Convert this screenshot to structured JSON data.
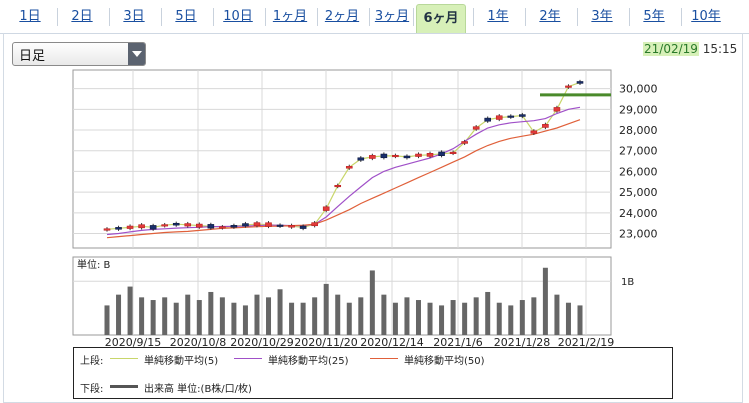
{
  "tabs": [
    "1日",
    "2日",
    "3日",
    "5日",
    "10日",
    "1ヶ月",
    "2ヶ月",
    "3ヶ月",
    "6ヶ月",
    "1年",
    "2年",
    "3年",
    "5年",
    "10年"
  ],
  "active_tab": "6ヶ月",
  "select": {
    "value": "日足"
  },
  "timestamp": {
    "date": "21/02/19",
    "time": "15:15"
  },
  "chart_data": [
    {
      "type": "candlestick",
      "panel": "price",
      "yticks": [
        "30,000",
        "29,000",
        "28,000",
        "27,000",
        "26,000",
        "25,000",
        "24,000",
        "23,000"
      ],
      "ylim": [
        22300,
        30900
      ],
      "grid": true,
      "series": [
        {
          "name": "単純移動平均(5)",
          "color": "#c8d66a",
          "values": [
            23200,
            23250,
            23300,
            23350,
            23300,
            23400,
            23450,
            23420,
            23380,
            23350,
            23300,
            23350,
            23420,
            23450,
            23430,
            23380,
            23350,
            23300,
            23450,
            24200,
            25300,
            26200,
            26600,
            26700,
            26750,
            26750,
            26700,
            26780,
            26800,
            26850,
            26900,
            27400,
            28100,
            28500,
            28600,
            28650,
            28700,
            27900,
            28200,
            29000,
            30100,
            30300
          ]
        },
        {
          "name": "単純移動平均(25)",
          "color": "#a050c8",
          "values": [
            22950,
            23000,
            23080,
            23150,
            23200,
            23230,
            23260,
            23280,
            23300,
            23330,
            23340,
            23350,
            23360,
            23380,
            23400,
            23400,
            23380,
            23380,
            23450,
            23800,
            24300,
            24800,
            25250,
            25700,
            26000,
            26200,
            26350,
            26500,
            26650,
            26850,
            27100,
            27450,
            27800,
            28100,
            28250,
            28350,
            28400,
            28450,
            28550,
            28800,
            29000,
            29100
          ]
        },
        {
          "name": "単純移動平均(50)",
          "color": "#e0603a",
          "values": [
            22800,
            22850,
            22900,
            22950,
            23000,
            23050,
            23080,
            23100,
            23150,
            23200,
            23250,
            23270,
            23300,
            23330,
            23350,
            23360,
            23380,
            23400,
            23450,
            23650,
            23900,
            24150,
            24450,
            24700,
            24950,
            25200,
            25450,
            25700,
            25950,
            26200,
            26450,
            26700,
            27000,
            27250,
            27450,
            27600,
            27700,
            27800,
            27950,
            28100,
            28300,
            28500
          ]
        }
      ],
      "marker_line": {
        "value": 29700,
        "color": "#4a8a2a"
      }
    },
    {
      "type": "bar",
      "panel": "volume",
      "ylabel": "単位: B",
      "ytick": "1B",
      "xticks": [
        "2020/9/15",
        "2020/10/8",
        "2020/10/29",
        "2020/11/20",
        "2020/12/14",
        "2021/1/6",
        "2021/1/28",
        "2021/2/19"
      ],
      "color": "#666666",
      "values": [
        0.55,
        0.75,
        0.9,
        0.7,
        0.65,
        0.7,
        0.6,
        0.75,
        0.65,
        0.8,
        0.7,
        0.6,
        0.55,
        0.75,
        0.7,
        0.85,
        0.6,
        0.6,
        0.7,
        0.95,
        0.75,
        0.6,
        0.7,
        1.2,
        0.75,
        0.6,
        0.7,
        0.65,
        0.6,
        0.55,
        0.65,
        0.6,
        0.7,
        0.8,
        0.6,
        0.55,
        0.65,
        0.7,
        1.25,
        0.75,
        0.6,
        0.55
      ]
    }
  ],
  "legend": {
    "upper_label": "上段:",
    "lower_label": "下段:",
    "items": [
      {
        "label": "単純移動平均(5)",
        "color": "#c8d66a"
      },
      {
        "label": "単純移動平均(25)",
        "color": "#a050c8"
      },
      {
        "label": "単純移動平均(50)",
        "color": "#e0603a"
      }
    ],
    "volume_label": "出来高 単位:(B株/口/枚)",
    "volume_color": "#555555"
  }
}
